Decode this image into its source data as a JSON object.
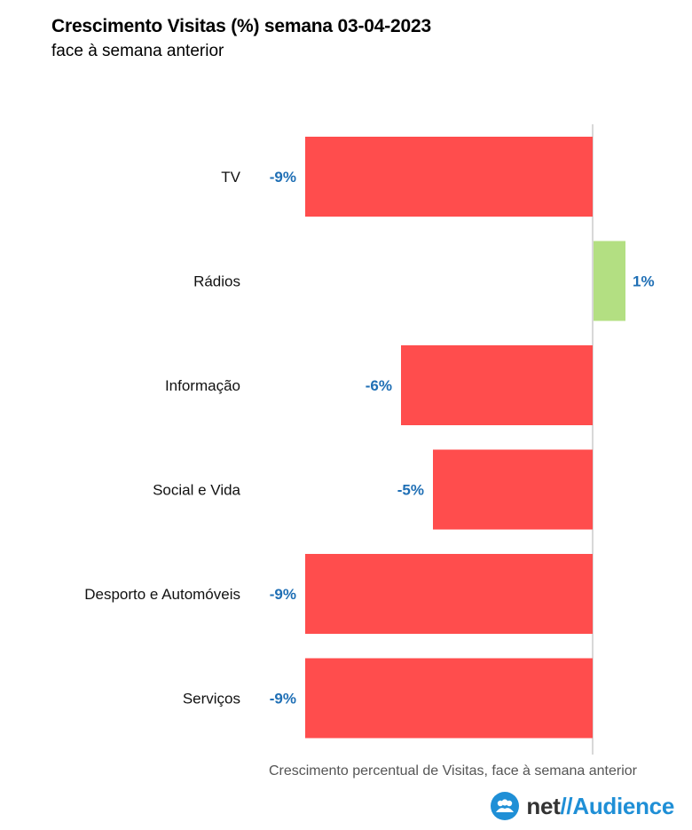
{
  "chart_data": {
    "type": "bar",
    "orientation": "horizontal",
    "title": "Crescimento Visitas (%) semana 03-04-2023",
    "subtitle": "face à semana anterior",
    "xlabel": "Crescimento percentual de Visitas, face à semana anterior",
    "categories": [
      "TV",
      "Rádios",
      "Informação",
      "Social e Vida",
      "Desporto e Automóveis",
      "Serviços"
    ],
    "values": [
      -9,
      1,
      -6,
      -5,
      -9,
      -9
    ],
    "data_labels": [
      "-9%",
      "1%",
      "-6%",
      "-5%",
      "-9%",
      "-9%"
    ],
    "xlim": [
      -9.4,
      1.2
    ],
    "grid": false,
    "colors": {
      "negative": "#ff4d4d",
      "positive": "#b3df82",
      "label": "#1f6fb5",
      "axis": "#cccccc"
    }
  },
  "brand": {
    "icon": "audience-logo-icon",
    "net": "net",
    "slash": "//",
    "name": "Audience"
  }
}
